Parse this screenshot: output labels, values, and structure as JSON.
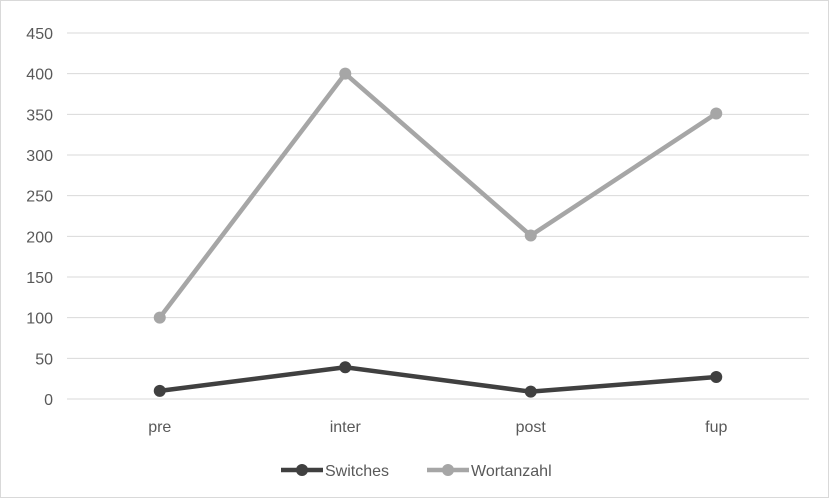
{
  "chart_data": {
    "type": "line",
    "title": "",
    "xlabel": "",
    "ylabel": "",
    "categories": [
      "pre",
      "inter",
      "post",
      "fup"
    ],
    "ylim": [
      0,
      450
    ],
    "yticks": [
      0,
      50,
      100,
      150,
      200,
      250,
      300,
      350,
      400,
      450
    ],
    "grid": true,
    "legend_position": "bottom",
    "series": [
      {
        "name": "Switches",
        "values": [
          10,
          39,
          9,
          27
        ],
        "color": "#404040"
      },
      {
        "name": "Wortanzahl",
        "values": [
          100,
          400,
          201,
          351
        ],
        "color": "#a6a6a6"
      }
    ]
  }
}
